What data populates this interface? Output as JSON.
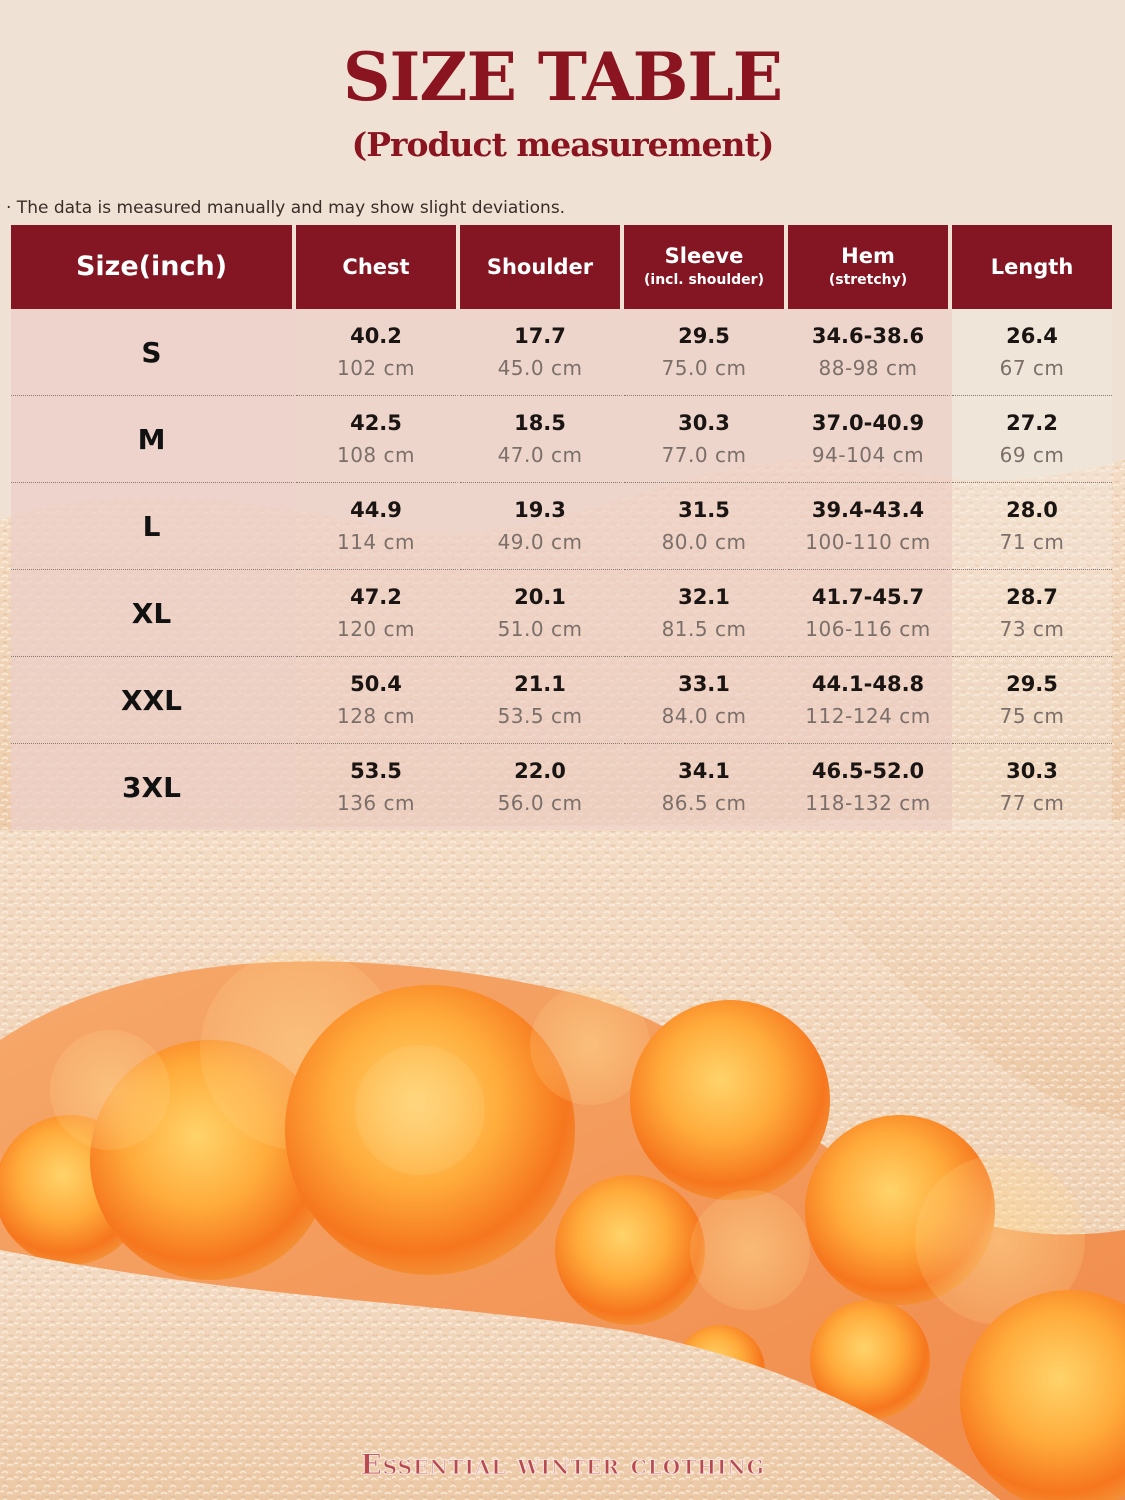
{
  "title": "SIZE TABLE",
  "subtitle": "(Product measurement)",
  "note": "· The data is measured manually and may show slight deviations.",
  "columns": [
    {
      "main": "Size(inch)",
      "sub": ""
    },
    {
      "main": "Chest",
      "sub": ""
    },
    {
      "main": "Shoulder",
      "sub": ""
    },
    {
      "main": "Sleeve",
      "sub": "(incl. shoulder)"
    },
    {
      "main": "Hem",
      "sub": "(stretchy)"
    },
    {
      "main": "Length",
      "sub": ""
    }
  ],
  "rows": [
    {
      "size": "S",
      "cells": [
        [
          "40.2",
          "102 cm"
        ],
        [
          "17.7",
          "45.0 cm"
        ],
        [
          "29.5",
          "75.0 cm"
        ],
        [
          "34.6-38.6",
          "88-98 cm"
        ],
        [
          "26.4",
          "67 cm"
        ]
      ]
    },
    {
      "size": "M",
      "cells": [
        [
          "42.5",
          "108 cm"
        ],
        [
          "18.5",
          "47.0 cm"
        ],
        [
          "30.3",
          "77.0 cm"
        ],
        [
          "37.0-40.9",
          "94-104 cm"
        ],
        [
          "27.2",
          "69 cm"
        ]
      ]
    },
    {
      "size": "L",
      "cells": [
        [
          "44.9",
          "114 cm"
        ],
        [
          "19.3",
          "49.0 cm"
        ],
        [
          "31.5",
          "80.0 cm"
        ],
        [
          "39.4-43.4",
          "100-110 cm"
        ],
        [
          "28.0",
          "71 cm"
        ]
      ]
    },
    {
      "size": "XL",
      "cells": [
        [
          "47.2",
          "120 cm"
        ],
        [
          "20.1",
          "51.0 cm"
        ],
        [
          "32.1",
          "81.5 cm"
        ],
        [
          "41.7-45.7",
          "106-116 cm"
        ],
        [
          "28.7",
          "73 cm"
        ]
      ]
    },
    {
      "size": "XXL",
      "cells": [
        [
          "50.4",
          "128 cm"
        ],
        [
          "21.1",
          "53.5 cm"
        ],
        [
          "33.1",
          "84.0 cm"
        ],
        [
          "44.1-48.8",
          "112-124 cm"
        ],
        [
          "29.5",
          "75 cm"
        ]
      ]
    },
    {
      "size": "3XL",
      "cells": [
        [
          "53.5",
          "136 cm"
        ],
        [
          "22.0",
          "56.0 cm"
        ],
        [
          "34.1",
          "86.5 cm"
        ],
        [
          "46.5-52.0",
          "118-132 cm"
        ],
        [
          "30.3",
          "77 cm"
        ]
      ]
    }
  ],
  "footer": "Essential winter clothing",
  "colors": {
    "header_bg": "#841623",
    "title": "#8a1420",
    "page_bg": "#efe2d4",
    "fleece": "#f1d6bd",
    "bubble": "#f07a24"
  }
}
